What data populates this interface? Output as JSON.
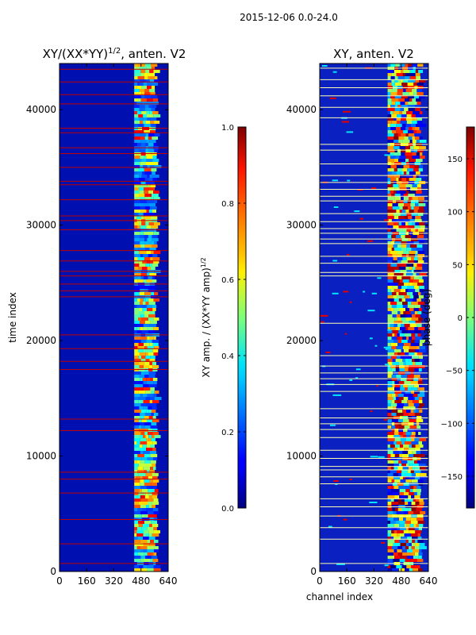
{
  "suptitle": "2015-12-06 0.0-24.0",
  "chart_data": [
    {
      "type": "heatmap",
      "title_main": "XY/(XX*YY)",
      "title_exp": "1/2",
      "title_tail": ", anten. V2",
      "xlabel": "",
      "ylabel": "time index",
      "xlim": [
        0,
        640
      ],
      "ylim": [
        0,
        44000
      ],
      "xticks": [
        0,
        160,
        320,
        480,
        640
      ],
      "yticks": [
        0,
        10000,
        20000,
        30000,
        40000
      ],
      "active_channel_range": [
        440,
        560
      ],
      "flagged_rows": [
        700,
        2400,
        4500,
        6800,
        8000,
        8600,
        12200,
        13200,
        17500,
        18200,
        19300,
        20500,
        23800,
        24300,
        24900,
        25600,
        26000,
        26900,
        27800,
        29600,
        30400,
        30800,
        32200,
        33500,
        33800,
        35000,
        36200,
        36700,
        38000,
        38400,
        40500,
        41300,
        42400,
        43500
      ],
      "colorbar": {
        "min": 0.0,
        "max": 1.0,
        "ticks": [
          "0.0",
          "0.2",
          "0.4",
          "0.6",
          "0.8",
          "1.0"
        ],
        "tick_values": [
          0.0,
          0.2,
          0.4,
          0.6,
          0.8,
          1.0
        ],
        "label_main": "XY amp. / (XX*YY amp)",
        "label_exp": "1/2"
      }
    },
    {
      "type": "heatmap",
      "title": "XY, anten. V2",
      "xlabel": "channel index",
      "ylabel": "",
      "xlim": [
        0,
        640
      ],
      "ylim": [
        0,
        44000
      ],
      "xticks": [
        0,
        160,
        320,
        480,
        640
      ],
      "yticks": [
        0,
        10000,
        20000,
        30000,
        40000
      ],
      "active_channel_range": [
        400,
        590
      ],
      "flagged_rows": [
        700,
        2800,
        3800,
        4800,
        5600,
        6300,
        7600,
        8200,
        8800,
        9100,
        9800,
        10500,
        11600,
        12300,
        12800,
        13300,
        14100,
        15600,
        16200,
        16700,
        17200,
        17800,
        18700,
        21500,
        25600,
        25900,
        26700,
        27300,
        28400,
        28800,
        29300,
        29700,
        30300,
        31000,
        32100,
        32500,
        33100,
        33700,
        34300,
        35300,
        36500,
        37000,
        39300,
        40200,
        41200,
        41900,
        42600,
        43600
      ],
      "colorbar": {
        "min": -180,
        "max": 180,
        "ticks": [
          "150",
          "100",
          "50",
          "0",
          "−50",
          "−100",
          "−150"
        ],
        "tick_values": [
          150,
          100,
          50,
          0,
          -50,
          -100,
          -150
        ],
        "label": "phase (deg)"
      }
    }
  ]
}
